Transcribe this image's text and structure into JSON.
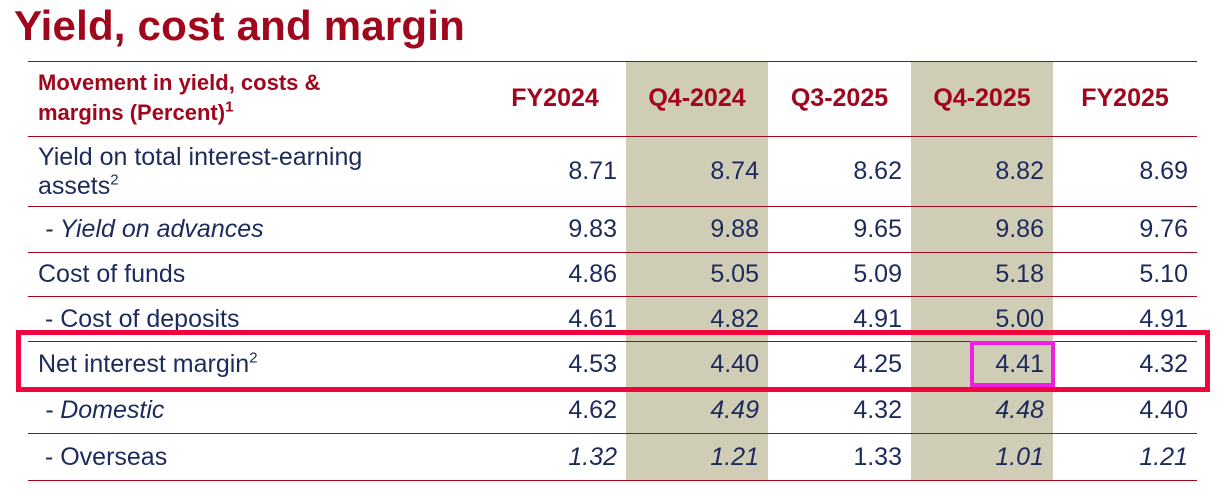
{
  "title": "Yield, cost and margin",
  "header": {
    "label_line": "Movement in yield, costs & margins (Percent)",
    "label_sup": "1",
    "columns": [
      "FY2024",
      "Q4-2024",
      "Q3-2025",
      "Q4-2025",
      "FY2025"
    ]
  },
  "rows": [
    {
      "label": "Yield on total interest-earning assets",
      "sup": "2",
      "values": [
        "8.71",
        "8.74",
        "8.62",
        "8.82",
        "8.69"
      ]
    },
    {
      "label": " - Yield on advances",
      "sup": "",
      "values": [
        "9.83",
        "9.88",
        "9.65",
        "9.86",
        "9.76"
      ]
    },
    {
      "label": "Cost of funds",
      "sup": "",
      "values": [
        "4.86",
        "5.05",
        "5.09",
        "5.18",
        "5.10"
      ]
    },
    {
      "label": " - Cost of deposits",
      "sup": "",
      "values": [
        "4.61",
        "4.82",
        "4.91",
        "5.00",
        "4.91"
      ]
    },
    {
      "label": "Net interest margin",
      "sup": "2",
      "values": [
        "4.53",
        "4.40",
        "4.25",
        "4.41",
        "4.32"
      ]
    },
    {
      "label": " - Domestic",
      "sup": "",
      "values": [
        "4.62",
        "4.49",
        "4.32",
        "4.48",
        "4.40"
      ]
    },
    {
      "label": " - Overseas",
      "sup": "",
      "values": [
        "1.32",
        "1.21",
        "1.33",
        "1.01",
        "1.21"
      ]
    }
  ],
  "colors": {
    "title": "#a0061c",
    "body_text": "#1c2a5c",
    "column_highlight": "#cfcdb5",
    "row_highlight_border": "#f0053f",
    "cell_highlight_border": "#f01ee0"
  }
}
